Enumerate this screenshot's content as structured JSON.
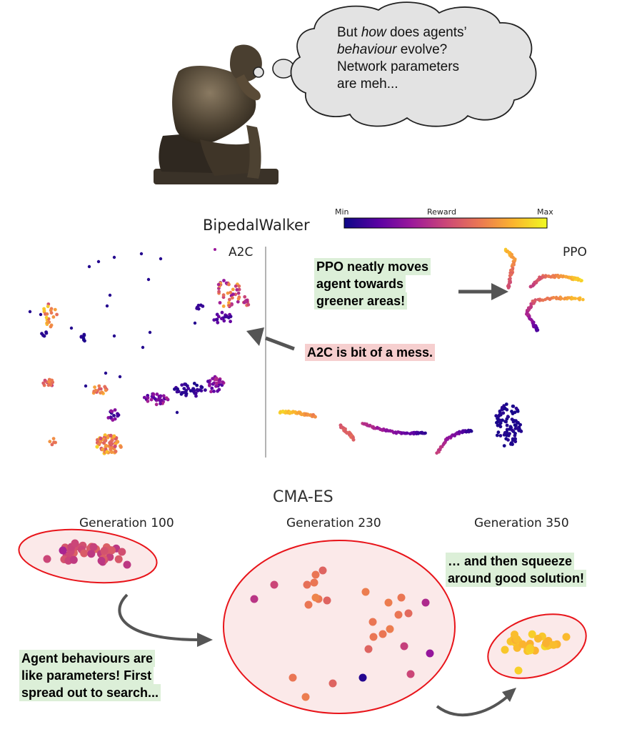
{
  "thought_bubble": {
    "lines": [
      [
        "But ",
        {
          "i": "how"
        },
        " does agents’"
      ],
      [
        {
          "i": "behaviour"
        },
        " evolve?"
      ],
      [
        "Network parameters"
      ],
      [
        "are meh..."
      ]
    ]
  },
  "bipedal": {
    "title": "BipedalWalker",
    "colorbar": {
      "min_label": "Min",
      "mid_label": "Reward",
      "max_label": "Max"
    },
    "a2c_label": "A2C",
    "ppo_label": "PPO"
  },
  "notes": {
    "ppo": [
      "PPO neatly moves",
      "agent towards",
      "greener areas!"
    ],
    "a2c": [
      "A2C is bit of a mess."
    ],
    "squeeze": [
      "… and then squeeze",
      "around good solution!"
    ],
    "spread": [
      "Agent behaviours are",
      "like parameters! First",
      "spread out to search..."
    ]
  },
  "cmaes": {
    "title": "CMA-ES",
    "generations": [
      "Generation 100",
      "Generation 230",
      "Generation 350"
    ]
  },
  "colors": {
    "cmap": [
      "#0d0887",
      "#5b02a3",
      "#9a179b",
      "#cb4678",
      "#eb7852",
      "#fbb32f",
      "#f0f921"
    ],
    "ellipse_stroke": "#e8141a",
    "ellipse_fill": "#fbe9e9",
    "arrow": "#555555"
  }
}
